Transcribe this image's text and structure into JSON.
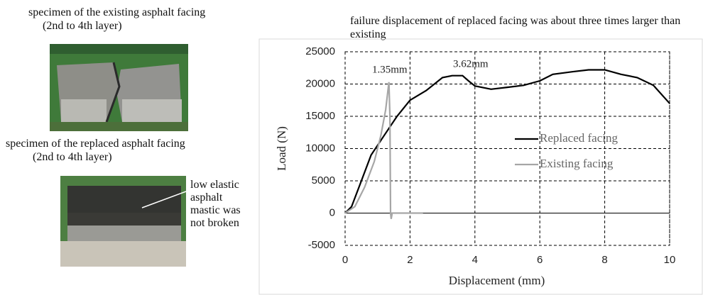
{
  "captions": {
    "existing": [
      "specimen of the existing asphalt facing",
      "(2nd to 4th layer)"
    ],
    "replaced": [
      "specimen of the replaced asphalt facing",
      "(2nd to 4th layer)"
    ],
    "note": [
      "low elastic",
      "asphalt",
      "mastic was",
      "not broken"
    ]
  },
  "chart_data": {
    "type": "line",
    "title": "failure displacement of replaced facing was about three times larger  than existing",
    "x_label": "Displacement   (mm)",
    "y_label": "Load   (N)",
    "xlim": [
      0,
      10
    ],
    "xticks": [
      0,
      2,
      4,
      6,
      8,
      10
    ],
    "ylim": [
      -5000,
      25000
    ],
    "yticks": [
      -5000,
      0,
      5000,
      10000,
      15000,
      20000,
      25000
    ],
    "grid": true,
    "annotations": [
      "1.35mm",
      "3.62mm"
    ],
    "series": [
      {
        "name": "Replaced facing",
        "color": "#000000",
        "x": [
          0,
          0.2,
          0.5,
          0.8,
          1.2,
          1.6,
          2,
          2.5,
          3,
          3.3,
          3.62,
          3.8,
          4,
          4.5,
          5,
          5.5,
          6,
          6.4,
          7,
          7.5,
          8,
          8.5,
          9,
          9.5,
          10
        ],
        "values": [
          0,
          1000,
          5000,
          9000,
          12000,
          15000,
          17500,
          19000,
          21000,
          21300,
          21300,
          20500,
          19700,
          19200,
          19500,
          19800,
          20500,
          21500,
          21900,
          22200,
          22200,
          21500,
          21000,
          19800,
          17000
        ]
      },
      {
        "name": "Existing facing",
        "color": "#a6a6a6",
        "x": [
          0,
          0.3,
          0.6,
          0.9,
          1.1,
          1.25,
          1.35,
          1.38,
          1.4,
          1.42,
          1.45,
          2.4
        ],
        "values": [
          0,
          1000,
          4000,
          8000,
          12000,
          16000,
          20300,
          15000,
          0,
          -900,
          0,
          0
        ]
      }
    ]
  }
}
